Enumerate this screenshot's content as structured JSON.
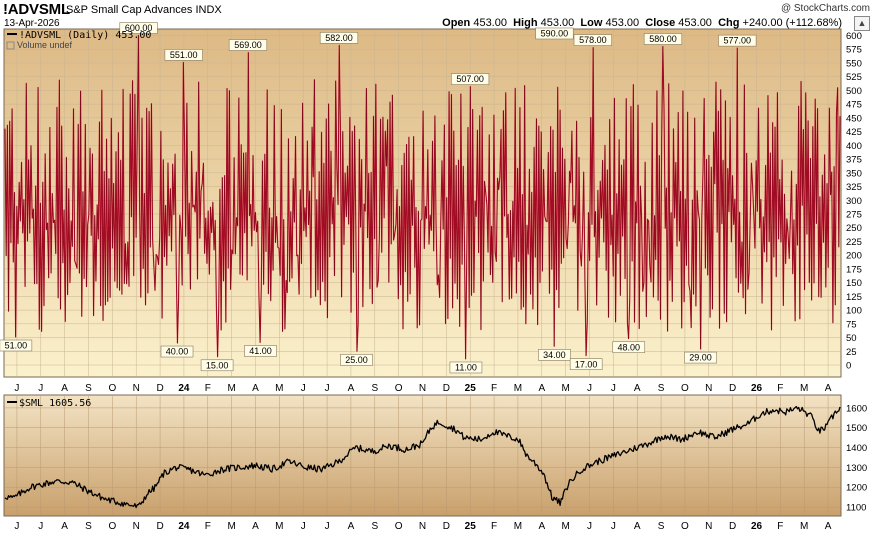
{
  "header": {
    "symbol": "!ADVSML",
    "name": "S&P Small Cap Advances",
    "exchange": "INDX",
    "date": "13-Apr-2026",
    "watermark": "@ StockCharts.com",
    "open_label": "Open",
    "open": "453.00",
    "high_label": "High",
    "high": "453.00",
    "low_label": "Low",
    "low": "453.00",
    "close_label": "Close",
    "close": "453.00",
    "chg_label": "Chg",
    "chg": "+240.00 (+112.68%)",
    "up_icon": "up-arrow-icon"
  },
  "colors": {
    "bg_top": "#ddb985",
    "bg_bottom": "#fbf1cc",
    "line_red": "#c8102e",
    "line_black": "#000000",
    "sml_bg_top": "#f3e3c4",
    "sml_bg_bottom": "#c9a06c"
  },
  "x_axis": {
    "labels": [
      "J",
      "J",
      "A",
      "S",
      "O",
      "N",
      "D",
      "24",
      "F",
      "M",
      "A",
      "M",
      "J",
      "J",
      "A",
      "S",
      "O",
      "N",
      "D",
      "25",
      "F",
      "M",
      "A",
      "M",
      "J",
      "J",
      "A",
      "S",
      "O",
      "N",
      "D",
      "26",
      "F",
      "M",
      "A"
    ]
  },
  "chart_data": [
    {
      "id": "advsml",
      "type": "line",
      "title": "!ADVSML (Daily) 453.00",
      "subtitle": "Volume undef",
      "series": [
        {
          "name": "!ADVSML",
          "color": "#c8102e",
          "last": 453
        }
      ],
      "ylim": [
        -20,
        610
      ],
      "y_ticks": [
        0,
        25,
        50,
        75,
        100,
        125,
        150,
        175,
        200,
        225,
        250,
        275,
        300,
        325,
        350,
        375,
        400,
        425,
        450,
        475,
        500,
        525,
        550,
        575,
        600
      ],
      "annotations": [
        {
          "label": "600.00",
          "value": 600,
          "t": 0.16
        },
        {
          "label": "551.00",
          "value": 551,
          "t": 0.214
        },
        {
          "label": "569.00",
          "value": 569,
          "t": 0.291
        },
        {
          "label": "582.00",
          "value": 582,
          "t": 0.4
        },
        {
          "label": "507.00",
          "value": 507,
          "t": 0.557
        },
        {
          "label": "590.00",
          "value": 590,
          "t": 0.658
        },
        {
          "label": "578.00",
          "value": 578,
          "t": 0.704
        },
        {
          "label": "580.00",
          "value": 580,
          "t": 0.788
        },
        {
          "label": "577.00",
          "value": 577,
          "t": 0.877
        },
        {
          "label": "51.00",
          "value": 51,
          "t": 0.013
        },
        {
          "label": "40.00",
          "value": 40,
          "t": 0.206
        },
        {
          "label": "15.00",
          "value": 15,
          "t": 0.254
        },
        {
          "label": "41.00",
          "value": 41,
          "t": 0.306
        },
        {
          "label": "25.00",
          "value": 25,
          "t": 0.421
        },
        {
          "label": "11.00",
          "value": 11,
          "t": 0.552
        },
        {
          "label": "34.00",
          "value": 34,
          "t": 0.658
        },
        {
          "label": "17.00",
          "value": 17,
          "t": 0.696
        },
        {
          "label": "48.00",
          "value": 48,
          "t": 0.747
        },
        {
          "label": "29.00",
          "value": 29,
          "t": 0.833
        }
      ]
    },
    {
      "id": "sml",
      "type": "line",
      "title": "$SML 1605.56",
      "series": [
        {
          "name": "$SML",
          "color": "#000000",
          "last": 1605.56
        }
      ],
      "ylim": [
        1060,
        1660
      ],
      "y_ticks": [
        1100,
        1200,
        1300,
        1400,
        1500,
        1600
      ],
      "keypoints": [
        [
          0,
          1155
        ],
        [
          0.01,
          1145
        ],
        [
          0.03,
          1200
        ],
        [
          0.06,
          1230
        ],
        [
          0.08,
          1225
        ],
        [
          0.1,
          1180
        ],
        [
          0.12,
          1140
        ],
        [
          0.145,
          1115
        ],
        [
          0.16,
          1100
        ],
        [
          0.17,
          1165
        ],
        [
          0.18,
          1200
        ],
        [
          0.19,
          1270
        ],
        [
          0.205,
          1300
        ],
        [
          0.22,
          1290
        ],
        [
          0.24,
          1260
        ],
        [
          0.26,
          1290
        ],
        [
          0.28,
          1300
        ],
        [
          0.3,
          1310
        ],
        [
          0.32,
          1290
        ],
        [
          0.34,
          1330
        ],
        [
          0.36,
          1300
        ],
        [
          0.38,
          1290
        ],
        [
          0.4,
          1330
        ],
        [
          0.42,
          1400
        ],
        [
          0.44,
          1380
        ],
        [
          0.46,
          1410
        ],
        [
          0.48,
          1390
        ],
        [
          0.5,
          1420
        ],
        [
          0.51,
          1500
        ],
        [
          0.52,
          1530
        ],
        [
          0.53,
          1510
        ],
        [
          0.54,
          1490
        ],
        [
          0.55,
          1450
        ],
        [
          0.57,
          1440
        ],
        [
          0.585,
          1480
        ],
        [
          0.6,
          1460
        ],
        [
          0.615,
          1440
        ],
        [
          0.625,
          1360
        ],
        [
          0.635,
          1320
        ],
        [
          0.645,
          1270
        ],
        [
          0.655,
          1150
        ],
        [
          0.665,
          1120
        ],
        [
          0.675,
          1220
        ],
        [
          0.69,
          1290
        ],
        [
          0.71,
          1330
        ],
        [
          0.73,
          1360
        ],
        [
          0.75,
          1390
        ],
        [
          0.77,
          1420
        ],
        [
          0.79,
          1460
        ],
        [
          0.81,
          1440
        ],
        [
          0.83,
          1480
        ],
        [
          0.85,
          1450
        ],
        [
          0.87,
          1490
        ],
        [
          0.89,
          1520
        ],
        [
          0.905,
          1570
        ],
        [
          0.92,
          1590
        ],
        [
          0.935,
          1580
        ],
        [
          0.95,
          1600
        ],
        [
          0.965,
          1560
        ],
        [
          0.975,
          1480
        ],
        [
          0.985,
          1510
        ],
        [
          0.99,
          1550
        ],
        [
          1.0,
          1605
        ]
      ]
    }
  ]
}
